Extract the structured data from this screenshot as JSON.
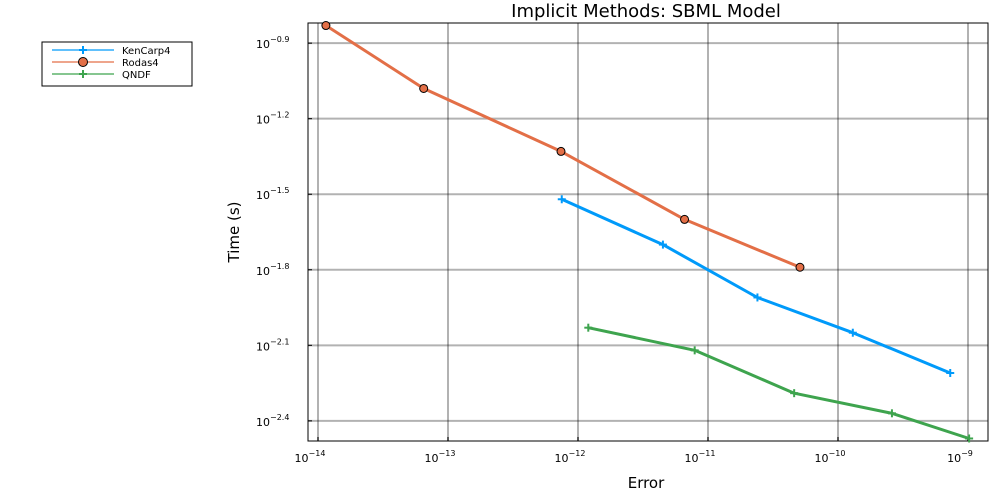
{
  "chart_data": {
    "type": "line",
    "title": "Implicit Methods: SBML Model",
    "xlabel": "Error",
    "ylabel": "Time (s)",
    "x_scale": "log10",
    "y_scale": "log10",
    "xlim": [
      1e-14,
      1e-09
    ],
    "ylim": [
      -2.48,
      -0.82
    ],
    "ylim_note": "log10 of time in seconds",
    "x_ticks": [
      {
        "value": 1e-14,
        "base": "10",
        "exp": "−14"
      },
      {
        "value": 1e-13,
        "base": "10",
        "exp": "−13"
      },
      {
        "value": 1e-12,
        "base": "10",
        "exp": "−12"
      },
      {
        "value": 1e-11,
        "base": "10",
        "exp": "−11"
      },
      {
        "value": 1e-10,
        "base": "10",
        "exp": "−10"
      },
      {
        "value": 1e-09,
        "base": "10",
        "exp": "−9"
      }
    ],
    "y_ticks": [
      {
        "value": -0.9,
        "base": "10",
        "exp": "−0.9"
      },
      {
        "value": -1.2,
        "base": "10",
        "exp": "−1.2"
      },
      {
        "value": -1.5,
        "base": "10",
        "exp": "−1.5"
      },
      {
        "value": -1.8,
        "base": "10",
        "exp": "−1.8"
      },
      {
        "value": -2.1,
        "base": "10",
        "exp": "−2.1"
      },
      {
        "value": -2.4,
        "base": "10",
        "exp": "−2.4"
      }
    ],
    "grid": true,
    "legend_position": "outside-top-left",
    "series": [
      {
        "name": "KenCarp4",
        "color": "#009AFA",
        "marker": "cross",
        "points": [
          {
            "x": 7.5e-13,
            "y": -1.52
          },
          {
            "x": 4.5e-12,
            "y": -1.7
          },
          {
            "x": 2.4e-11,
            "y": -1.91
          },
          {
            "x": 1.3e-10,
            "y": -2.05
          },
          {
            "x": 7.3e-10,
            "y": -2.21
          }
        ]
      },
      {
        "name": "Rodas4",
        "color": "#E36F47",
        "marker": "circle",
        "points": [
          {
            "x": 1.15e-14,
            "y": -0.83
          },
          {
            "x": 6.5e-14,
            "y": -1.08
          },
          {
            "x": 7.4e-13,
            "y": -1.33
          },
          {
            "x": 6.6e-12,
            "y": -1.6
          },
          {
            "x": 5.1e-11,
            "y": -1.79
          }
        ]
      },
      {
        "name": "QNDF",
        "color": "#3EA44E",
        "marker": "cross",
        "points": [
          {
            "x": 1.2e-12,
            "y": -2.03
          },
          {
            "x": 7.9e-12,
            "y": -2.12
          },
          {
            "x": 4.6e-11,
            "y": -2.29
          },
          {
            "x": 2.6e-10,
            "y": -2.37
          },
          {
            "x": 1.02e-09,
            "y": -2.47
          }
        ]
      }
    ]
  }
}
